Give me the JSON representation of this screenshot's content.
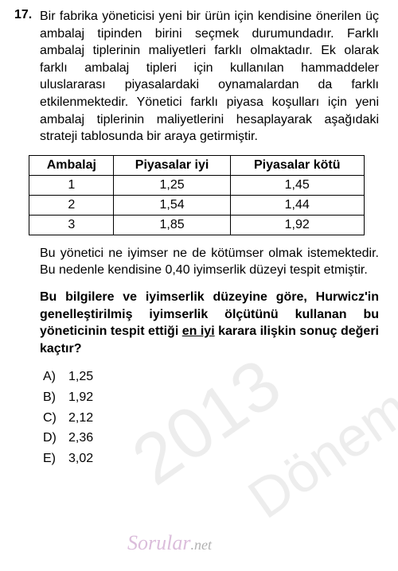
{
  "question": {
    "number": "17.",
    "prompt": "Bir fabrika yöneticisi yeni bir ürün için kendisine önerilen üç ambalaj tipinden birini seçmek durumundadır. Farklı ambalaj tiplerinin maliyetleri farklı olmaktadır. Ek olarak farklı ambalaj tipleri için kullanılan hammaddeler uluslararası piyasalardaki oynamalardan da farklı etkilenmektedir. Yönetici farklı piyasa koşulları için yeni ambalaj tiplerinin maliyetlerini hesaplayarak aşağıdaki strateji tablosunda bir araya getirmiştir."
  },
  "table": {
    "headers": [
      "Ambalaj",
      "Piyasalar iyi",
      "Piyasalar kötü"
    ],
    "rows": [
      [
        "1",
        "1,25",
        "1,45"
      ],
      [
        "2",
        "1,54",
        "1,44"
      ],
      [
        "3",
        "1,85",
        "1,92"
      ]
    ]
  },
  "mid_text": "Bu yönetici ne iyimser ne de kötümser olmak istemektedir. Bu nedenle kendisine 0,40 iyimserlik düzeyi tespit etmiştir.",
  "bold_question": {
    "part1": "Bu bilgilere ve iyimserlik düzeyine göre, Hurwicz'in genelleştirilmiş iyimserlik ölçütünü kullanan bu yöneticinin tespit ettiği ",
    "underlined": "en iyi",
    "part2": " karara ilişkin sonuç değeri kaçtır?"
  },
  "options": [
    {
      "label": "A)",
      "value": "1,25"
    },
    {
      "label": "B)",
      "value": "1,92"
    },
    {
      "label": "C)",
      "value": "2,12"
    },
    {
      "label": "D)",
      "value": "2,36"
    },
    {
      "label": "E)",
      "value": "3,02"
    }
  ],
  "watermarks": {
    "wm2": "2013",
    "wm3": "Dönem",
    "sorular": "Sorular",
    "net": ".net"
  }
}
